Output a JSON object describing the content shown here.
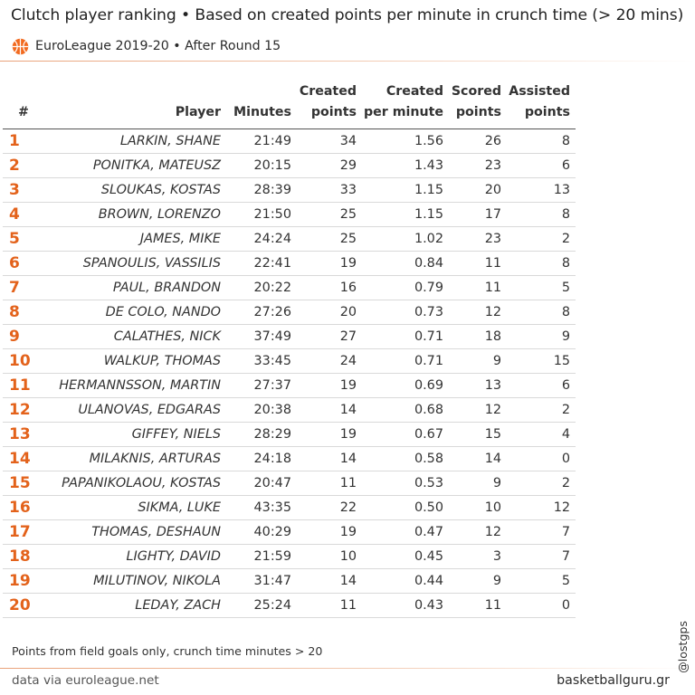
{
  "header": {
    "title": "Clutch player ranking • Based on created points per minute in crunch time (> 20 mins)",
    "subtitle": "EuroLeague 2019-20 • After Round 15",
    "logo_icon": "euroleague-basketball-logo-icon",
    "accent_color": "#e3621b"
  },
  "chart_data": {
    "type": "table",
    "columns": [
      {
        "key": "rank",
        "label": [
          "#"
        ]
      },
      {
        "key": "player",
        "label": [
          "Player"
        ]
      },
      {
        "key": "minutes",
        "label": [
          "Minutes"
        ]
      },
      {
        "key": "created",
        "label": [
          "Created",
          "points"
        ]
      },
      {
        "key": "cpm",
        "label": [
          "Created",
          "per minute"
        ]
      },
      {
        "key": "scored",
        "label": [
          "Scored",
          "points"
        ]
      },
      {
        "key": "assisted",
        "label": [
          "Assisted",
          "points"
        ]
      }
    ],
    "rows": [
      {
        "rank": "1",
        "player": "LARKIN, SHANE",
        "minutes": "21:49",
        "created": 34,
        "cpm": "1.56",
        "scored": 26,
        "assisted": 8
      },
      {
        "rank": "2",
        "player": "PONITKA, MATEUSZ",
        "minutes": "20:15",
        "created": 29,
        "cpm": "1.43",
        "scored": 23,
        "assisted": 6
      },
      {
        "rank": "3",
        "player": "SLOUKAS, KOSTAS",
        "minutes": "28:39",
        "created": 33,
        "cpm": "1.15",
        "scored": 20,
        "assisted": 13
      },
      {
        "rank": "4",
        "player": "BROWN, LORENZO",
        "minutes": "21:50",
        "created": 25,
        "cpm": "1.15",
        "scored": 17,
        "assisted": 8
      },
      {
        "rank": "5",
        "player": "JAMES, MIKE",
        "minutes": "24:24",
        "created": 25,
        "cpm": "1.02",
        "scored": 23,
        "assisted": 2
      },
      {
        "rank": "6",
        "player": "SPANOULIS, VASSILIS",
        "minutes": "22:41",
        "created": 19,
        "cpm": "0.84",
        "scored": 11,
        "assisted": 8
      },
      {
        "rank": "7",
        "player": "PAUL, BRANDON",
        "minutes": "20:22",
        "created": 16,
        "cpm": "0.79",
        "scored": 11,
        "assisted": 5
      },
      {
        "rank": "8",
        "player": "DE COLO, NANDO",
        "minutes": "27:26",
        "created": 20,
        "cpm": "0.73",
        "scored": 12,
        "assisted": 8
      },
      {
        "rank": "9",
        "player": "CALATHES, NICK",
        "minutes": "37:49",
        "created": 27,
        "cpm": "0.71",
        "scored": 18,
        "assisted": 9
      },
      {
        "rank": "10",
        "player": "WALKUP, THOMAS",
        "minutes": "33:45",
        "created": 24,
        "cpm": "0.71",
        "scored": 9,
        "assisted": 15
      },
      {
        "rank": "11",
        "player": "HERMANNSSON, MARTIN",
        "minutes": "27:37",
        "created": 19,
        "cpm": "0.69",
        "scored": 13,
        "assisted": 6
      },
      {
        "rank": "12",
        "player": "ULANOVAS, EDGARAS",
        "minutes": "20:38",
        "created": 14,
        "cpm": "0.68",
        "scored": 12,
        "assisted": 2
      },
      {
        "rank": "13",
        "player": "GIFFEY, NIELS",
        "minutes": "28:29",
        "created": 19,
        "cpm": "0.67",
        "scored": 15,
        "assisted": 4
      },
      {
        "rank": "14",
        "player": "MILAKNIS, ARTURAS",
        "minutes": "24:18",
        "created": 14,
        "cpm": "0.58",
        "scored": 14,
        "assisted": 0
      },
      {
        "rank": "15",
        "player": "PAPANIKOLAOU, KOSTAS",
        "minutes": "20:47",
        "created": 11,
        "cpm": "0.53",
        "scored": 9,
        "assisted": 2
      },
      {
        "rank": "16",
        "player": "SIKMA, LUKE",
        "minutes": "43:35",
        "created": 22,
        "cpm": "0.50",
        "scored": 10,
        "assisted": 12
      },
      {
        "rank": "17",
        "player": "THOMAS, DESHAUN",
        "minutes": "40:29",
        "created": 19,
        "cpm": "0.47",
        "scored": 12,
        "assisted": 7
      },
      {
        "rank": "18",
        "player": "LIGHTY, DAVID",
        "minutes": "21:59",
        "created": 10,
        "cpm": "0.45",
        "scored": 3,
        "assisted": 7
      },
      {
        "rank": "19",
        "player": "MILUTINOV, NIKOLA",
        "minutes": "31:47",
        "created": 14,
        "cpm": "0.44",
        "scored": 9,
        "assisted": 5
      },
      {
        "rank": "20",
        "player": "LEDAY, ZACH",
        "minutes": "25:24",
        "created": 11,
        "cpm": "0.43",
        "scored": 11,
        "assisted": 0
      }
    ]
  },
  "footer": {
    "note": "Points from field goals only, crunch time minutes > 20",
    "source": "data via euroleague.net",
    "site": "basketballguru.gr",
    "handle": "@lostgps"
  }
}
